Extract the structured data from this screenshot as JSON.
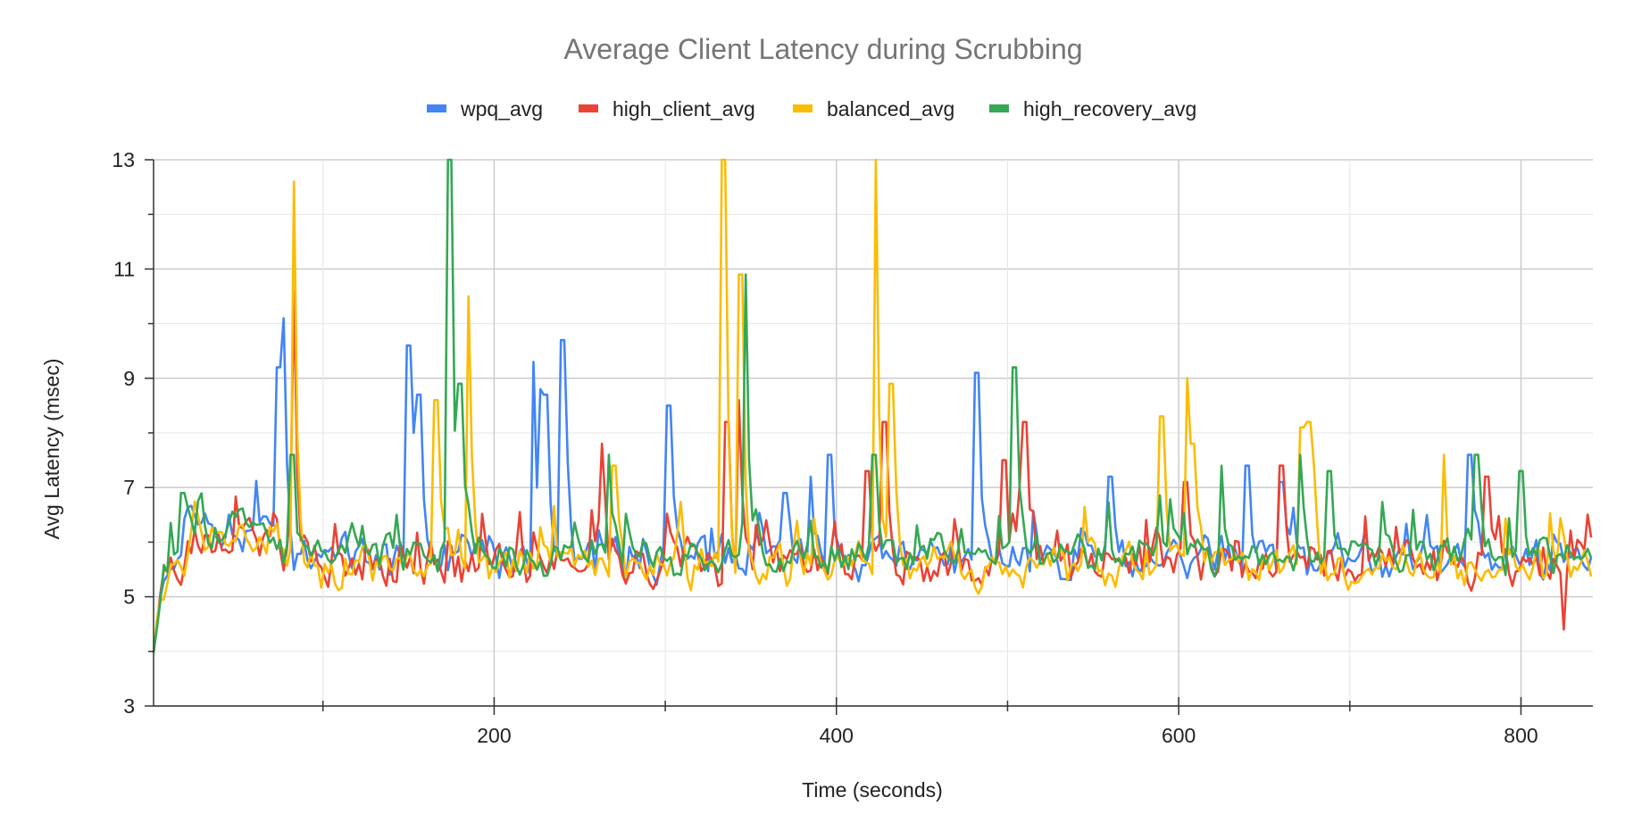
{
  "chart_data": {
    "type": "line",
    "title": "Average Client Latency during Scrubbing",
    "xlabel": "Time (seconds)",
    "ylabel": "Avg Latency (msec)",
    "xlim": [
      1,
      842
    ],
    "ylim": [
      3,
      13
    ],
    "x_ticks": [
      200,
      400,
      600,
      800
    ],
    "x_tick_labels": [
      "200",
      "400",
      "600",
      "800"
    ],
    "y_ticks": [
      3,
      5,
      7,
      9,
      11,
      13
    ],
    "y_tick_labels": [
      "3",
      "5",
      "7",
      "9",
      "11",
      "13"
    ],
    "grid": true,
    "legend_position": "top-center",
    "series": [
      {
        "name": "wpq_avg",
        "color": "#4285F4",
        "baseline": 5.7,
        "noise": 0.35,
        "seed": 11,
        "spikes": [
          [
            74,
            9.2
          ],
          [
            77,
            10.1
          ],
          [
            150,
            9.6
          ],
          [
            153,
            8.0
          ],
          [
            156,
            8.7
          ],
          [
            223,
            9.3
          ],
          [
            227,
            8.8
          ],
          [
            230,
            8.7
          ],
          [
            240,
            9.7
          ],
          [
            302,
            8.5
          ],
          [
            370,
            6.9
          ],
          [
            385,
            7.2
          ],
          [
            396,
            7.6
          ],
          [
            482,
            9.1
          ],
          [
            560,
            7.2
          ],
          [
            640,
            7.4
          ],
          [
            660,
            7.1
          ],
          [
            770,
            7.6
          ]
        ]
      },
      {
        "name": "high_client_avg",
        "color": "#EA4335",
        "baseline": 5.6,
        "noise": 0.38,
        "seed": 23,
        "spikes": [
          [
            83,
            10.6
          ],
          [
            263,
            7.8
          ],
          [
            336,
            8.2
          ],
          [
            343,
            8.6
          ],
          [
            418,
            7.3
          ],
          [
            428,
            8.2
          ],
          [
            498,
            7.5
          ],
          [
            510,
            8.2
          ],
          [
            604,
            7.1
          ],
          [
            660,
            7.4
          ],
          [
            780,
            7.2
          ],
          [
            825,
            4.4
          ]
        ]
      },
      {
        "name": "balanced_avg",
        "color": "#FBBC04",
        "baseline": 5.55,
        "noise": 0.36,
        "seed": 37,
        "spikes": [
          [
            83,
            12.6
          ],
          [
            166,
            8.6
          ],
          [
            185,
            10.5
          ],
          [
            270,
            7.4
          ],
          [
            334,
            13.0
          ],
          [
            344,
            10.9
          ],
          [
            423,
            13.0
          ],
          [
            432,
            8.9
          ],
          [
            590,
            8.3
          ],
          [
            606,
            9.0
          ],
          [
            608,
            7.8
          ],
          [
            672,
            8.1
          ],
          [
            676,
            8.2
          ],
          [
            755,
            7.6
          ]
        ]
      },
      {
        "name": "high_recovery_avg",
        "color": "#34A853",
        "baseline": 5.75,
        "noise": 0.33,
        "seed": 53,
        "spikes": [
          [
            18,
            6.9
          ],
          [
            82,
            7.6
          ],
          [
            174,
            13.0
          ],
          [
            180,
            8.9
          ],
          [
            267,
            7.6
          ],
          [
            347,
            10.9
          ],
          [
            422,
            7.6
          ],
          [
            504,
            9.2
          ],
          [
            625,
            7.4
          ],
          [
            671,
            7.6
          ],
          [
            688,
            7.3
          ],
          [
            774,
            7.6
          ],
          [
            800,
            7.3
          ]
        ]
      }
    ]
  }
}
